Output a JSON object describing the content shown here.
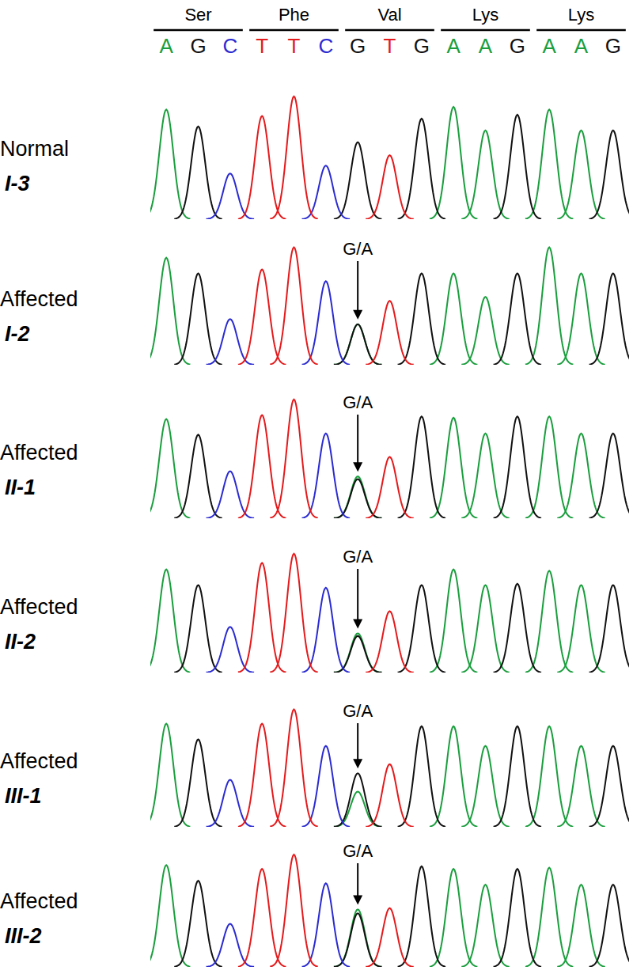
{
  "header": {
    "codons": [
      "Ser",
      "Phe",
      "Val",
      "Lys",
      "Lys"
    ],
    "bases": [
      "A",
      "G",
      "C",
      "T",
      "T",
      "C",
      "G",
      "T",
      "G",
      "A",
      "A",
      "G",
      "A",
      "A",
      "G"
    ],
    "colors": [
      "#1b9e3e",
      "#111111",
      "#2b2bd1",
      "#e41a1c",
      "#e41a1c",
      "#2b2bd1",
      "#111111",
      "#e41a1c",
      "#111111",
      "#1b9e3e",
      "#1b9e3e",
      "#111111",
      "#1b9e3e",
      "#1b9e3e",
      "#111111"
    ]
  },
  "chart_data": [
    {
      "type": "peaks",
      "title": "Normal",
      "subtitle": "I-3",
      "tick_labels": false,
      "x": [
        1,
        2,
        3,
        4,
        5,
        6,
        7,
        8,
        9,
        10,
        11,
        12,
        13,
        14,
        15
      ],
      "xlim": [
        0.5,
        15.5
      ],
      "ylim": [
        0,
        100
      ],
      "series": [
        {
          "color": "#1b9e3e",
          "values": [
            84,
            null,
            null,
            null,
            null,
            null,
            null,
            null,
            null,
            86,
            68,
            null,
            84,
            68,
            null
          ]
        },
        {
          "color": "#111111",
          "values": [
            null,
            71,
            null,
            null,
            null,
            null,
            59,
            null,
            77,
            null,
            null,
            80,
            null,
            null,
            68
          ]
        },
        {
          "color": "#2b2bd1",
          "values": [
            null,
            null,
            35,
            null,
            null,
            41,
            null,
            null,
            null,
            null,
            null,
            null,
            null,
            null,
            null
          ]
        },
        {
          "color": "#e41a1c",
          "values": [
            null,
            null,
            null,
            79,
            94,
            null,
            null,
            49,
            null,
            null,
            null,
            null,
            null,
            null,
            null
          ]
        }
      ]
    },
    {
      "type": "peaks",
      "title": "Affected",
      "subtitle": "I-2",
      "tick_labels": false,
      "x": [
        1,
        2,
        3,
        4,
        5,
        6,
        7,
        8,
        9,
        10,
        11,
        12,
        13,
        14,
        15
      ],
      "xlim": [
        0.5,
        15.5
      ],
      "ylim": [
        0,
        100
      ],
      "annotation": {
        "text": "G/A",
        "x": 7
      },
      "series": [
        {
          "color": "#1b9e3e",
          "values": [
            82,
            null,
            null,
            null,
            null,
            null,
            31,
            null,
            null,
            70,
            52,
            null,
            90,
            70,
            null
          ]
        },
        {
          "color": "#111111",
          "values": [
            null,
            70,
            null,
            null,
            null,
            null,
            31,
            null,
            70,
            null,
            null,
            70,
            null,
            null,
            70
          ]
        },
        {
          "color": "#2b2bd1",
          "values": [
            null,
            null,
            35,
            null,
            null,
            64,
            null,
            null,
            null,
            null,
            null,
            null,
            null,
            null,
            null
          ]
        },
        {
          "color": "#e41a1c",
          "values": [
            null,
            null,
            null,
            73,
            90,
            null,
            null,
            49,
            null,
            null,
            null,
            null,
            null,
            null,
            null
          ]
        }
      ]
    },
    {
      "type": "peaks",
      "title": "Affected",
      "subtitle": "II-1",
      "tick_labels": false,
      "x": [
        1,
        2,
        3,
        4,
        5,
        6,
        7,
        8,
        9,
        10,
        11,
        12,
        13,
        14,
        15
      ],
      "xlim": [
        0.5,
        15.5
      ],
      "ylim": [
        0,
        100
      ],
      "annotation": {
        "text": "G/A",
        "x": 7
      },
      "series": [
        {
          "color": "#1b9e3e",
          "values": [
            76,
            null,
            null,
            null,
            null,
            null,
            32,
            null,
            null,
            77,
            65,
            null,
            78,
            65,
            null
          ]
        },
        {
          "color": "#111111",
          "values": [
            null,
            64,
            null,
            null,
            null,
            null,
            30,
            null,
            78,
            null,
            null,
            78,
            null,
            null,
            65
          ]
        },
        {
          "color": "#2b2bd1",
          "values": [
            null,
            null,
            36,
            null,
            null,
            65,
            null,
            null,
            null,
            null,
            null,
            null,
            null,
            null,
            null
          ]
        },
        {
          "color": "#e41a1c",
          "values": [
            null,
            null,
            null,
            79,
            91,
            null,
            null,
            47,
            null,
            null,
            null,
            null,
            null,
            null,
            null
          ]
        }
      ]
    },
    {
      "type": "peaks",
      "title": "Affected",
      "subtitle": "II-2",
      "tick_labels": false,
      "x": [
        1,
        2,
        3,
        4,
        5,
        6,
        7,
        8,
        9,
        10,
        11,
        12,
        13,
        14,
        15
      ],
      "xlim": [
        0.5,
        15.5
      ],
      "ylim": [
        0,
        100
      ],
      "annotation": {
        "text": "G/A",
        "x": 7
      },
      "series": [
        {
          "color": "#1b9e3e",
          "values": [
            79,
            null,
            null,
            null,
            null,
            null,
            30,
            null,
            null,
            79,
            67,
            null,
            78,
            67,
            null
          ]
        },
        {
          "color": "#111111",
          "values": [
            null,
            67,
            null,
            null,
            null,
            null,
            28,
            null,
            67,
            null,
            null,
            68,
            null,
            null,
            67
          ]
        },
        {
          "color": "#2b2bd1",
          "values": [
            null,
            null,
            35,
            null,
            null,
            65,
            null,
            null,
            null,
            null,
            null,
            null,
            null,
            null,
            null
          ]
        },
        {
          "color": "#e41a1c",
          "values": [
            null,
            null,
            null,
            84,
            91,
            null,
            null,
            47,
            null,
            null,
            null,
            null,
            null,
            null,
            null
          ]
        }
      ]
    },
    {
      "type": "peaks",
      "title": "Affected",
      "subtitle": "III-1",
      "tick_labels": false,
      "x": [
        1,
        2,
        3,
        4,
        5,
        6,
        7,
        8,
        9,
        10,
        11,
        12,
        13,
        14,
        15
      ],
      "xlim": [
        0.5,
        15.5
      ],
      "ylim": [
        0,
        100
      ],
      "annotation": {
        "text": "G/A",
        "x": 7
      },
      "series": [
        {
          "color": "#1b9e3e",
          "values": [
            79,
            null,
            null,
            null,
            null,
            null,
            27,
            null,
            null,
            77,
            62,
            null,
            77,
            62,
            null
          ]
        },
        {
          "color": "#111111",
          "values": [
            null,
            67,
            null,
            null,
            null,
            null,
            41,
            null,
            77,
            null,
            null,
            77,
            null,
            null,
            62
          ]
        },
        {
          "color": "#2b2bd1",
          "values": [
            null,
            null,
            36,
            null,
            null,
            62,
            null,
            null,
            null,
            null,
            null,
            null,
            null,
            null,
            null
          ]
        },
        {
          "color": "#e41a1c",
          "values": [
            null,
            null,
            null,
            79,
            90,
            null,
            null,
            48,
            null,
            null,
            null,
            null,
            null,
            null,
            null
          ]
        }
      ]
    },
    {
      "type": "peaks",
      "title": "Affected",
      "subtitle": "III-2",
      "tick_labels": false,
      "x": [
        1,
        2,
        3,
        4,
        5,
        6,
        7,
        8,
        9,
        10,
        11,
        12,
        13,
        14,
        15
      ],
      "xlim": [
        0.5,
        15.5
      ],
      "ylim": [
        0,
        100
      ],
      "annotation": {
        "text": "G/A",
        "x": 7
      },
      "series": [
        {
          "color": "#1b9e3e",
          "values": [
            78,
            null,
            null,
            null,
            null,
            null,
            44,
            null,
            null,
            75,
            63,
            null,
            76,
            63,
            null
          ]
        },
        {
          "color": "#111111",
          "values": [
            null,
            66,
            null,
            null,
            null,
            null,
            41,
            null,
            77,
            null,
            null,
            75,
            null,
            null,
            63
          ]
        },
        {
          "color": "#2b2bd1",
          "values": [
            null,
            null,
            33,
            null,
            null,
            64,
            null,
            null,
            null,
            null,
            null,
            null,
            null,
            null,
            null
          ]
        },
        {
          "color": "#e41a1c",
          "values": [
            null,
            null,
            null,
            75,
            86,
            null,
            null,
            45,
            null,
            null,
            null,
            null,
            null,
            null,
            null
          ]
        }
      ]
    }
  ]
}
